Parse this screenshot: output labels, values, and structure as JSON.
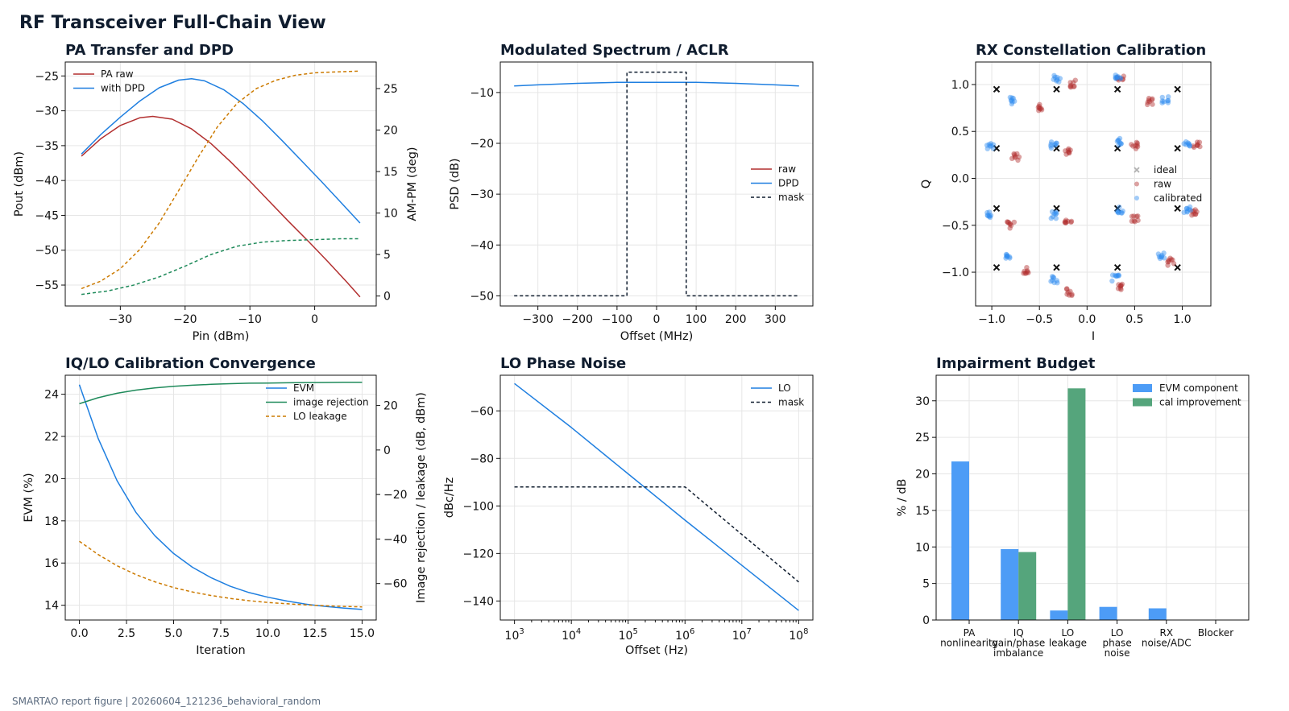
{
  "title": "RF Transceiver Full-Chain View",
  "footer": "SMARTAO report figure | 20260604_121236_behavioral_random",
  "colors": {
    "pa_raw": "#b22f2f",
    "dpd": "#1f7fe0",
    "ampm": "#cc7a00",
    "green": "#1e8a5a",
    "mask": "#0f1c2e",
    "raw_pts": "#b22f2f",
    "cal_pts": "#2f8cf0",
    "ideal": "#111111",
    "bar_blue": "#4d9cf6",
    "bar_green": "#55a57c"
  },
  "chart_data": [
    {
      "id": "pa",
      "type": "line",
      "title": "PA Transfer and DPD",
      "xlabel": "Pin (dBm)",
      "ylabel": "Pout (dBm)",
      "y2label": "AM-PM (deg)",
      "xlim": [
        -38.5,
        9.5
      ],
      "ylim": [
        -58,
        -23
      ],
      "y2lim": [
        -1.2,
        28.2
      ],
      "xticks": [
        -30,
        -20,
        -10,
        0
      ],
      "yticks": [
        -55,
        -50,
        -45,
        -40,
        -35,
        -30,
        -25
      ],
      "y2ticks": [
        0,
        5,
        10,
        15,
        20,
        25
      ],
      "legend": [
        {
          "name": "PA raw",
          "color": "pa_raw"
        },
        {
          "name": "with DPD",
          "color": "dpd"
        }
      ],
      "series": [
        {
          "legend": "PA raw",
          "color": "pa_raw",
          "axis": "y",
          "x": [
            -36,
            -33,
            -30,
            -27,
            -25,
            -22,
            -19,
            -16,
            -13,
            -10,
            -7,
            -4,
            -1,
            2,
            5,
            7
          ],
          "y": [
            -36.5,
            -34.0,
            -32.1,
            -31.0,
            -30.8,
            -31.2,
            -32.6,
            -34.7,
            -37.3,
            -40.1,
            -43.0,
            -45.9,
            -48.7,
            -51.6,
            -54.6,
            -56.7
          ]
        },
        {
          "legend": "with DPD",
          "color": "dpd",
          "axis": "y",
          "x": [
            -36,
            -33,
            -30,
            -27,
            -24,
            -21,
            -19,
            -17,
            -14,
            -11,
            -8,
            -5,
            -2,
            1,
            4,
            7
          ],
          "y": [
            -36.2,
            -33.4,
            -30.9,
            -28.6,
            -26.7,
            -25.6,
            -25.4,
            -25.7,
            -27.0,
            -29.0,
            -31.5,
            -34.3,
            -37.2,
            -40.1,
            -43.1,
            -46.1
          ]
        },
        {
          "color": "ampm",
          "axis": "y2",
          "dash": "4,3",
          "x": [
            -36,
            -33,
            -30,
            -27,
            -24,
            -21,
            -18,
            -15,
            -12,
            -9,
            -6,
            -3,
            0,
            3,
            7
          ],
          "y": [
            0.9,
            1.8,
            3.3,
            5.6,
            8.8,
            12.7,
            16.7,
            20.4,
            23.2,
            25.0,
            26.0,
            26.6,
            26.9,
            27.0,
            27.1
          ]
        },
        {
          "color": "green",
          "axis": "y2",
          "dash": "4,3",
          "x": [
            -36,
            -32,
            -28,
            -24,
            -20,
            -16,
            -12,
            -8,
            -4,
            0,
            4,
            7
          ],
          "y": [
            0.2,
            0.6,
            1.3,
            2.3,
            3.6,
            5.0,
            6.0,
            6.5,
            6.7,
            6.8,
            6.9,
            6.9
          ]
        }
      ]
    },
    {
      "id": "spec",
      "type": "line",
      "title": "Modulated Spectrum / ACLR",
      "xlabel": "Offset (MHz)",
      "ylabel": "PSD (dB)",
      "xlim": [
        -395,
        395
      ],
      "ylim": [
        -52,
        -4
      ],
      "xticks": [
        -300,
        -200,
        -100,
        0,
        100,
        200,
        300
      ],
      "yticks": [
        -50,
        -40,
        -30,
        -20,
        -10
      ],
      "legend": [
        {
          "name": "raw",
          "color": "pa_raw"
        },
        {
          "name": "DPD",
          "color": "dpd"
        },
        {
          "name": "mask",
          "color": "mask",
          "dash": "4,3"
        }
      ],
      "series": [
        {
          "legend": "DPD",
          "color": "dpd",
          "x": [
            -360,
            -300,
            -200,
            -100,
            0,
            100,
            200,
            300,
            360
          ],
          "y": [
            -8.7,
            -8.5,
            -8.2,
            -8.0,
            -8.0,
            -8.0,
            -8.2,
            -8.5,
            -8.7
          ]
        },
        {
          "legend": "mask",
          "color": "mask",
          "dash": "4,3",
          "x": [
            -360,
            -75,
            -75,
            75,
            75,
            360
          ],
          "y": [
            -50,
            -50,
            -6,
            -6,
            -50,
            -50
          ]
        }
      ]
    },
    {
      "id": "const",
      "type": "scatter",
      "title": "RX Constellation Calibration",
      "xlabel": "I",
      "ylabel": "Q",
      "xlim": [
        -1.17,
        1.3
      ],
      "ylim": [
        -1.36,
        1.24
      ],
      "xticks": [
        -1.0,
        -0.5,
        0.0,
        0.5,
        1.0
      ],
      "yticks": [
        -1.0,
        -0.5,
        0.0,
        0.5,
        1.0
      ],
      "legend": [
        {
          "name": "ideal",
          "color": "ideal"
        },
        {
          "name": "raw",
          "color": "raw_pts"
        },
        {
          "name": "calibrated",
          "color": "cal_pts"
        }
      ],
      "series": [
        {
          "legend": "ideal",
          "marker": "x",
          "color": "ideal",
          "x": [
            -0.95,
            -0.32,
            0.32,
            0.95,
            -0.95,
            -0.32,
            0.32,
            0.95,
            -0.95,
            -0.32,
            0.32,
            0.95,
            -0.95,
            -0.32,
            0.32,
            0.95
          ],
          "y": [
            0.95,
            0.95,
            0.95,
            0.95,
            0.32,
            0.32,
            0.32,
            0.32,
            -0.32,
            -0.32,
            -0.32,
            -0.32,
            -0.95,
            -0.95,
            -0.95,
            -0.95
          ]
        },
        {
          "legend": "raw",
          "marker": "cluster",
          "color": "raw_pts",
          "x": [
            -0.5,
            -0.15,
            0.35,
            0.65,
            -0.75,
            -0.2,
            0.5,
            1.15,
            -0.8,
            -0.2,
            0.5,
            1.12,
            -0.65,
            -0.18,
            0.35,
            0.88
          ],
          "y": [
            0.75,
            1.01,
            1.07,
            0.82,
            0.23,
            0.29,
            0.35,
            0.37,
            -0.5,
            -0.47,
            -0.43,
            -0.37,
            -0.98,
            -1.21,
            -1.15,
            -0.89
          ]
        },
        {
          "legend": "calibrated",
          "marker": "cluster",
          "color": "cal_pts",
          "x": [
            -0.78,
            -0.32,
            0.32,
            0.82,
            -1.02,
            -0.35,
            0.34,
            1.05,
            -1.02,
            -0.35,
            0.34,
            1.05,
            -0.82,
            -0.35,
            0.3,
            0.78
          ],
          "y": [
            0.83,
            1.06,
            1.08,
            0.84,
            0.34,
            0.36,
            0.39,
            0.38,
            -0.38,
            -0.39,
            -0.34,
            -0.33,
            -0.84,
            -1.08,
            -1.06,
            -0.82
          ]
        }
      ]
    },
    {
      "id": "iq",
      "type": "line",
      "title": "IQ/LO Calibration Convergence",
      "xlabel": "Iteration",
      "ylabel": "EVM (%)",
      "y2label": "Image rejection / leakage (dB, dBm)",
      "xlim": [
        -0.75,
        15.75
      ],
      "ylim": [
        13.3,
        24.9
      ],
      "y2lim": [
        -76.4,
        33.6
      ],
      "xticks": [
        0.0,
        2.5,
        5.0,
        7.5,
        10.0,
        12.5,
        15.0
      ],
      "yticks": [
        14,
        16,
        18,
        20,
        22,
        24
      ],
      "y2ticks": [
        -60,
        -40,
        -20,
        0,
        20
      ],
      "legend": [
        {
          "name": "EVM",
          "color": "dpd"
        },
        {
          "name": "image rejection",
          "color": "green"
        },
        {
          "name": "LO leakage",
          "color": "ampm",
          "dash": "4,3"
        }
      ],
      "series": [
        {
          "legend": "EVM",
          "color": "dpd",
          "axis": "y",
          "x": [
            0,
            1,
            2,
            3,
            4,
            5,
            6,
            7,
            8,
            9,
            10,
            11,
            12,
            13,
            14,
            15
          ],
          "y": [
            24.45,
            21.9,
            19.9,
            18.4,
            17.3,
            16.45,
            15.8,
            15.3,
            14.9,
            14.6,
            14.38,
            14.2,
            14.05,
            13.95,
            13.87,
            13.8
          ]
        },
        {
          "legend": "image rejection",
          "color": "green",
          "axis": "y2",
          "x": [
            0,
            1,
            2,
            3,
            4,
            5,
            6,
            7,
            8,
            9,
            10,
            11,
            12,
            13,
            14,
            15
          ],
          "y": [
            20.8,
            23.5,
            25.5,
            26.9,
            27.9,
            28.6,
            29.1,
            29.5,
            29.8,
            30.0,
            30.1,
            30.2,
            30.3,
            30.35,
            30.4,
            30.4
          ]
        },
        {
          "legend": "LO leakage",
          "color": "ampm",
          "axis": "y2",
          "dash": "4,3",
          "x": [
            0,
            1,
            2,
            3,
            4,
            5,
            6,
            7,
            8,
            9,
            10,
            11,
            12,
            13,
            14,
            15
          ],
          "y": [
            -41.0,
            -47.0,
            -52.0,
            -56.0,
            -59.2,
            -61.8,
            -63.8,
            -65.4,
            -66.7,
            -67.7,
            -68.5,
            -69.1,
            -69.6,
            -70.0,
            -70.3,
            -70.5
          ]
        }
      ]
    },
    {
      "id": "pn",
      "type": "line",
      "title": "LO Phase Noise",
      "xlabel": "Offset (Hz)",
      "ylabel": "dBc/Hz",
      "xscale": "log",
      "xlim_exp": [
        2.75,
        8.25
      ],
      "ylim": [
        -148,
        -45
      ],
      "xtick_labels": [
        {
          "base": "10",
          "exp": "3"
        },
        {
          "base": "10",
          "exp": "4"
        },
        {
          "base": "10",
          "exp": "5"
        },
        {
          "base": "10",
          "exp": "6"
        },
        {
          "base": "10",
          "exp": "7"
        },
        {
          "base": "10",
          "exp": "8"
        }
      ],
      "yticks": [
        -140,
        -120,
        -100,
        -80,
        -60
      ],
      "legend": [
        {
          "name": "LO",
          "color": "dpd"
        },
        {
          "name": "mask",
          "color": "mask",
          "dash": "4,3"
        }
      ],
      "series": [
        {
          "legend": "LO",
          "color": "dpd",
          "xexp": [
            3,
            4,
            5,
            6,
            7,
            8
          ],
          "y": [
            -48.5,
            -67,
            -86.5,
            -106,
            -125,
            -144
          ]
        },
        {
          "legend": "mask",
          "color": "mask",
          "dash": "4,3",
          "xexp": [
            3,
            6,
            8
          ],
          "y": [
            -92,
            -92,
            -132
          ]
        }
      ]
    },
    {
      "id": "budget",
      "type": "bar",
      "title": "Impairment Budget",
      "ylabel": "% / dB",
      "ylim": [
        0,
        33.5
      ],
      "yticks": [
        0,
        5,
        10,
        15,
        20,
        25,
        30
      ],
      "categories": [
        [
          "PA",
          "nonlinearity"
        ],
        [
          "IQ",
          "gain/phase",
          "imbalance"
        ],
        [
          "LO",
          "leakage"
        ],
        [
          "LO",
          "phase",
          "noise"
        ],
        [
          "RX",
          "noise/ADC"
        ],
        [
          "Blocker"
        ]
      ],
      "series": [
        {
          "name": "EVM component",
          "color": "bar_blue",
          "values": [
            21.7,
            9.7,
            1.3,
            1.8,
            1.6,
            0
          ]
        },
        {
          "name": "cal improvement",
          "color": "bar_green",
          "values": [
            0,
            9.3,
            31.7,
            0,
            0,
            0
          ]
        }
      ]
    }
  ]
}
